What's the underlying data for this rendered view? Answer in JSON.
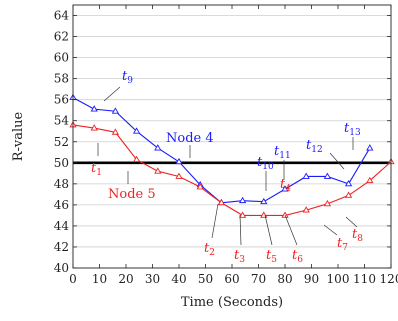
{
  "chart_data": {
    "type": "line",
    "title": "",
    "xlabel": "Time (Seconds)",
    "ylabel": "R-value",
    "xlim": [
      0,
      120
    ],
    "ylim": [
      40,
      65
    ],
    "xticks": [
      0,
      10,
      20,
      30,
      40,
      50,
      60,
      70,
      80,
      90,
      100,
      110,
      120
    ],
    "yticks": [
      40,
      42,
      44,
      46,
      48,
      50,
      52,
      54,
      56,
      58,
      60,
      62,
      64
    ],
    "grid": "horizontal",
    "threshold": {
      "y": 50,
      "color": "#000000"
    },
    "series": [
      {
        "name": "Node 4",
        "color": "#1a1aff",
        "marker": "triangle",
        "x": [
          0,
          8,
          16,
          24,
          32,
          40,
          48,
          56,
          64,
          72,
          80,
          88,
          96,
          104,
          112
        ],
        "y": [
          56.2,
          55.1,
          54.9,
          53.0,
          51.4,
          50.1,
          47.9,
          46.2,
          46.4,
          46.3,
          47.5,
          48.7,
          48.7,
          48.0,
          51.4
        ]
      },
      {
        "name": "Node 5",
        "color": "#ee2222",
        "marker": "triangle",
        "x": [
          0,
          8,
          16,
          24,
          32,
          40,
          48,
          56,
          64,
          72,
          80,
          88,
          96,
          104,
          112,
          120
        ],
        "y": [
          53.6,
          53.3,
          52.9,
          50.3,
          49.2,
          48.7,
          47.7,
          46.2,
          45.0,
          45.0,
          45.0,
          45.5,
          46.1,
          46.9,
          48.3,
          50.1
        ]
      }
    ],
    "annotations": [
      {
        "text": "Node 4",
        "color": "#1a1aff"
      },
      {
        "text": "Node 5",
        "color": "#ee2222"
      },
      {
        "base": "t",
        "sub": "1",
        "color": "#ee2222"
      },
      {
        "base": "t",
        "sub": "2",
        "color": "#ee2222"
      },
      {
        "base": "t",
        "sub": "3",
        "color": "#ee2222"
      },
      {
        "base": "t",
        "sub": "4",
        "color": "#ee2222"
      },
      {
        "base": "t",
        "sub": "5",
        "color": "#ee2222"
      },
      {
        "base": "t",
        "sub": "6",
        "color": "#ee2222"
      },
      {
        "base": "t",
        "sub": "7",
        "color": "#ee2222"
      },
      {
        "base": "t",
        "sub": "8",
        "color": "#ee2222"
      },
      {
        "base": "t",
        "sub": "9",
        "color": "#1a1aff"
      },
      {
        "base": "t",
        "sub": "10",
        "color": "#1a1aff"
      },
      {
        "base": "t",
        "sub": "11",
        "color": "#1a1aff"
      },
      {
        "base": "t",
        "sub": "12",
        "color": "#1a1aff"
      },
      {
        "base": "t",
        "sub": "13",
        "color": "#1a1aff"
      }
    ]
  }
}
